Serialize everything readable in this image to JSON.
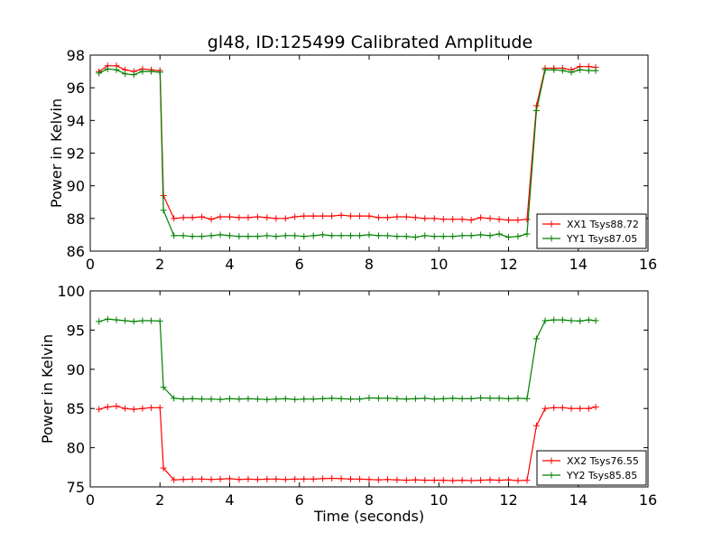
{
  "title": "gl48, ID:125499 Calibrated Amplitude",
  "colors": {
    "red": "#ff0000",
    "green": "#008000"
  },
  "chart_data": [
    {
      "type": "line",
      "title": "gl48, ID:125499 Calibrated Amplitude",
      "xlabel": "",
      "ylabel": "Power in Kelvin",
      "xlim": [
        0,
        16
      ],
      "ylim": [
        86,
        98
      ],
      "xticks": [
        "0",
        "2",
        "4",
        "6",
        "8",
        "10",
        "12",
        "14",
        "16"
      ],
      "yticks": [
        "86",
        "88",
        "90",
        "92",
        "94",
        "96",
        "98"
      ],
      "grid": false,
      "legend_position": "lower-right",
      "x": [
        0.25,
        0.5,
        0.75,
        1.0,
        1.25,
        1.5,
        1.75,
        2.0,
        2.1,
        2.4,
        2.67,
        2.93,
        3.2,
        3.47,
        3.73,
        4.0,
        4.27,
        4.53,
        4.8,
        5.07,
        5.33,
        5.6,
        5.87,
        6.13,
        6.4,
        6.67,
        6.93,
        7.2,
        7.47,
        7.73,
        8.0,
        8.27,
        8.53,
        8.8,
        9.07,
        9.33,
        9.6,
        9.87,
        10.13,
        10.4,
        10.67,
        10.93,
        11.2,
        11.47,
        11.73,
        12.0,
        12.27,
        12.53,
        12.8,
        13.05,
        13.3,
        13.55,
        13.8,
        14.05,
        14.3,
        14.5
      ],
      "series": [
        {
          "name": "XX1 Tsys88.72",
          "color": "#ff0000",
          "values": [
            97.0,
            97.35,
            97.35,
            97.1,
            97.0,
            97.15,
            97.1,
            97.05,
            89.4,
            88.0,
            88.05,
            88.05,
            88.1,
            87.95,
            88.1,
            88.1,
            88.05,
            88.05,
            88.1,
            88.05,
            88.0,
            88.0,
            88.1,
            88.15,
            88.15,
            88.15,
            88.15,
            88.2,
            88.15,
            88.15,
            88.15,
            88.05,
            88.05,
            88.1,
            88.1,
            88.05,
            88.0,
            88.0,
            87.95,
            87.95,
            87.95,
            87.9,
            88.05,
            88.0,
            87.95,
            87.9,
            87.9,
            87.95,
            94.9,
            97.2,
            97.2,
            97.2,
            97.1,
            97.3,
            97.3,
            97.25
          ]
        },
        {
          "name": "YY1 Tsys87.05",
          "color": "#008000",
          "values": [
            96.9,
            97.15,
            97.1,
            96.85,
            96.8,
            97.0,
            97.0,
            96.95,
            88.5,
            86.95,
            86.95,
            86.9,
            86.9,
            86.95,
            87.0,
            86.95,
            86.9,
            86.9,
            86.9,
            86.95,
            86.9,
            86.95,
            86.95,
            86.9,
            86.95,
            87.0,
            86.95,
            86.95,
            86.95,
            86.95,
            87.0,
            86.95,
            86.95,
            86.9,
            86.9,
            86.85,
            86.95,
            86.9,
            86.9,
            86.9,
            86.95,
            86.95,
            87.0,
            86.95,
            87.05,
            86.85,
            86.9,
            87.05,
            94.6,
            97.1,
            97.1,
            97.05,
            96.95,
            97.1,
            97.05,
            97.05
          ]
        }
      ]
    },
    {
      "type": "line",
      "title": "",
      "xlabel": "Time (seconds)",
      "ylabel": "Power in Kelvin",
      "xlim": [
        0,
        16
      ],
      "ylim": [
        75,
        100
      ],
      "xticks": [
        "0",
        "2",
        "4",
        "6",
        "8",
        "10",
        "12",
        "14",
        "16"
      ],
      "yticks": [
        "75",
        "80",
        "85",
        "90",
        "95",
        "100"
      ],
      "grid": false,
      "legend_position": "lower-right",
      "x": [
        0.25,
        0.5,
        0.75,
        1.0,
        1.25,
        1.5,
        1.75,
        2.0,
        2.1,
        2.4,
        2.67,
        2.93,
        3.2,
        3.47,
        3.73,
        4.0,
        4.27,
        4.53,
        4.8,
        5.07,
        5.33,
        5.6,
        5.87,
        6.13,
        6.4,
        6.67,
        6.93,
        7.2,
        7.47,
        7.73,
        8.0,
        8.27,
        8.53,
        8.8,
        9.07,
        9.33,
        9.6,
        9.87,
        10.13,
        10.4,
        10.67,
        10.93,
        11.2,
        11.47,
        11.73,
        12.0,
        12.27,
        12.53,
        12.8,
        13.05,
        13.3,
        13.55,
        13.8,
        14.05,
        14.3,
        14.5
      ],
      "series": [
        {
          "name": "XX2 Tsys76.55",
          "color": "#ff0000",
          "values": [
            84.9,
            85.2,
            85.3,
            85.0,
            84.9,
            85.0,
            85.1,
            85.1,
            77.4,
            75.9,
            75.95,
            76.0,
            76.0,
            75.95,
            76.0,
            76.05,
            75.95,
            76.0,
            75.95,
            76.0,
            76.0,
            75.95,
            76.0,
            76.0,
            76.0,
            76.05,
            76.1,
            76.05,
            76.0,
            76.0,
            75.95,
            75.9,
            75.95,
            75.9,
            75.85,
            75.9,
            75.85,
            75.85,
            75.85,
            75.8,
            75.85,
            75.8,
            75.85,
            75.9,
            75.85,
            75.9,
            75.8,
            75.85,
            82.8,
            85.0,
            85.1,
            85.1,
            85.0,
            85.0,
            85.0,
            85.2
          ]
        },
        {
          "name": "YY2 Tsys85.85",
          "color": "#008000",
          "values": [
            96.1,
            96.4,
            96.3,
            96.2,
            96.1,
            96.2,
            96.2,
            96.15,
            87.7,
            86.3,
            86.2,
            86.25,
            86.2,
            86.2,
            86.15,
            86.25,
            86.2,
            86.25,
            86.2,
            86.15,
            86.2,
            86.25,
            86.15,
            86.2,
            86.2,
            86.25,
            86.3,
            86.25,
            86.2,
            86.2,
            86.35,
            86.3,
            86.3,
            86.25,
            86.2,
            86.25,
            86.3,
            86.2,
            86.25,
            86.3,
            86.25,
            86.25,
            86.35,
            86.3,
            86.3,
            86.25,
            86.3,
            86.25,
            93.9,
            96.2,
            96.3,
            96.3,
            96.2,
            96.15,
            96.3,
            96.2
          ]
        }
      ]
    }
  ]
}
